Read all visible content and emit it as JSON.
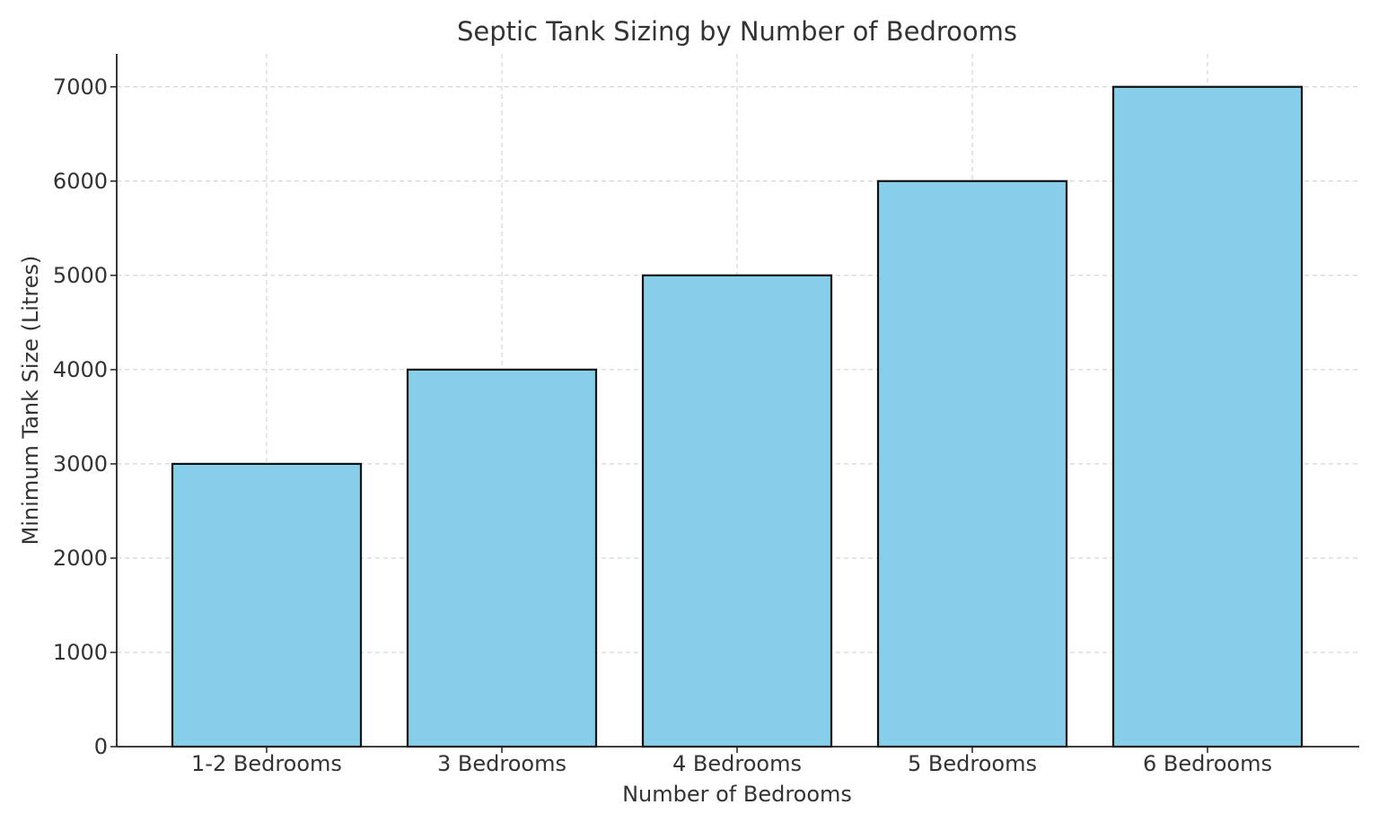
{
  "chart_data": {
    "type": "bar",
    "title": "Septic Tank Sizing by Number of Bedrooms",
    "xlabel": "Number of Bedrooms",
    "ylabel": "Minimum Tank Size (Litres)",
    "categories": [
      "1-2 Bedrooms",
      "3 Bedrooms",
      "4 Bedrooms",
      "5 Bedrooms",
      "6 Bedrooms"
    ],
    "values": [
      3000,
      4000,
      5000,
      6000,
      7000
    ],
    "ylim": [
      0,
      7350
    ],
    "yticks": [
      0,
      1000,
      2000,
      3000,
      4000,
      5000,
      6000,
      7000
    ],
    "grid": true,
    "bar_color": "#87CEEB",
    "edge_color": "#111111"
  }
}
